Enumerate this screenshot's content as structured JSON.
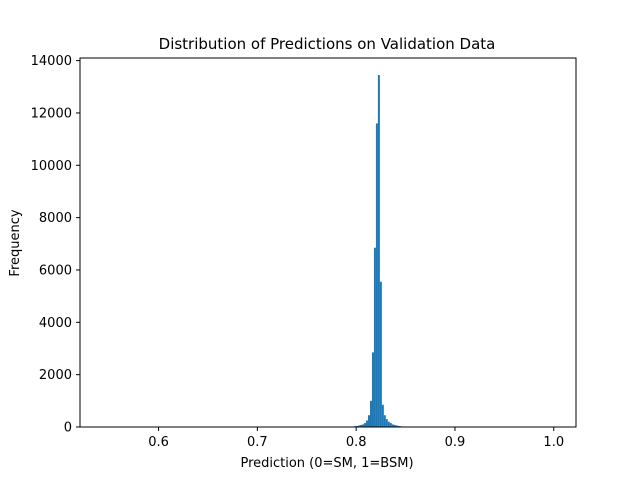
{
  "chart_data": {
    "type": "bar",
    "subtype": "histogram",
    "title": "Distribution of Predictions on Validation Data",
    "xlabel": "Prediction (0=SM, 1=BSM)",
    "ylabel": "Frequency",
    "xlim": [
      0.5205,
      1.0225
    ],
    "ylim": [
      0,
      14100
    ],
    "xticks": [
      0.6,
      0.7,
      0.8,
      0.9,
      1.0
    ],
    "xtick_labels": [
      "0.6",
      "0.7",
      "0.8",
      "0.9",
      "1.0"
    ],
    "yticks": [
      0,
      2000,
      4000,
      6000,
      8000,
      10000,
      12000,
      14000
    ],
    "ytick_labels": [
      "0",
      "2000",
      "4000",
      "6000",
      "8000",
      "10000",
      "12000",
      "14000"
    ],
    "bar_color": "#1f77b4",
    "grid": false,
    "legend": "none",
    "bins": {
      "bin_width": 0.002,
      "left_edges": [
        0.794,
        0.796,
        0.798,
        0.8,
        0.802,
        0.804,
        0.806,
        0.808,
        0.81,
        0.812,
        0.814,
        0.816,
        0.818,
        0.82,
        0.822,
        0.824,
        0.826,
        0.828,
        0.83,
        0.832,
        0.834,
        0.836,
        0.838,
        0.84,
        0.842,
        0.844,
        0.846,
        0.848,
        0.85,
        0.852,
        0.854,
        0.856
      ],
      "counts": [
        10,
        20,
        30,
        40,
        60,
        80,
        100,
        150,
        250,
        450,
        1000,
        2850,
        6850,
        11600,
        13450,
        5550,
        850,
        450,
        300,
        200,
        150,
        100,
        80,
        60,
        40,
        30,
        20,
        15,
        10,
        8,
        5,
        3
      ]
    }
  }
}
